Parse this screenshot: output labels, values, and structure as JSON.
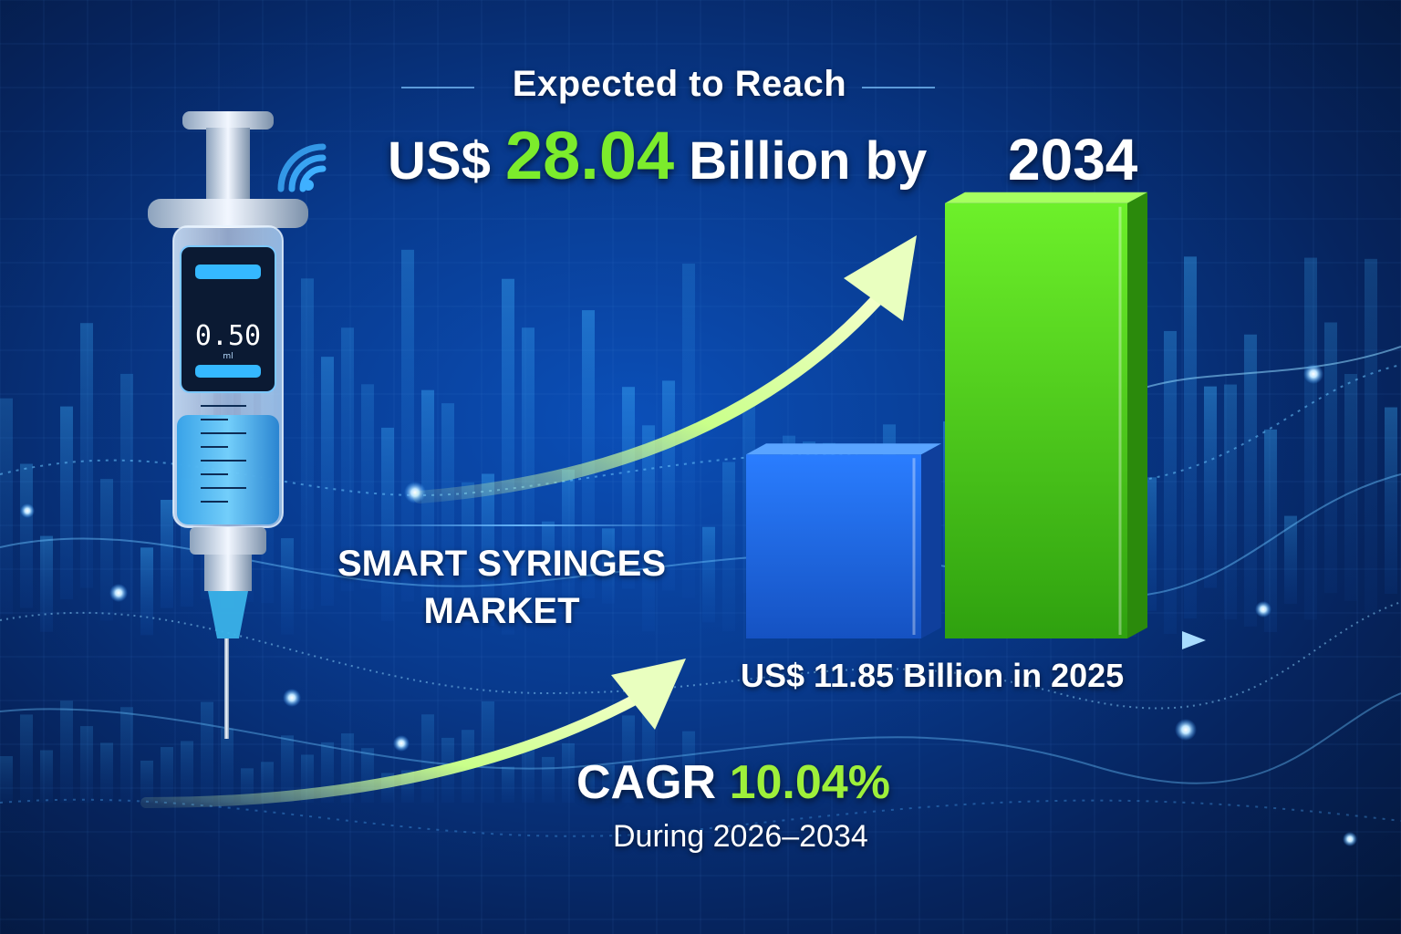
{
  "headline": {
    "line1": "Expected to Reach",
    "currency_prefix": "US$",
    "amount": "28.04",
    "unit_suffix": "Billion by",
    "target_year": "2034"
  },
  "market_title": {
    "line1": "SMART SYRINGES",
    "line2": "MARKET"
  },
  "base_value_label": "US$ 11.85 Billion in 2025",
  "cagr": {
    "prefix": "CAGR",
    "rate": "10.04%",
    "period": "During 2026–2034"
  },
  "syringe_display": {
    "reading": "0.50",
    "unit": "ml"
  },
  "colors": {
    "background": "#083a8e",
    "bar_2025": "#1f6fe0",
    "bar_2034": "#5ad11c",
    "highlight_green": "#7cec2c",
    "text": "#ffffff"
  },
  "chart_data": {
    "type": "bar",
    "categories": [
      "2025",
      "2034"
    ],
    "values": [
      11.85,
      28.04
    ],
    "title": "",
    "xlabel": "",
    "ylabel": "",
    "unit": "US$ Billion",
    "ylim": [
      0,
      30
    ],
    "grid": false,
    "legend": "none"
  }
}
